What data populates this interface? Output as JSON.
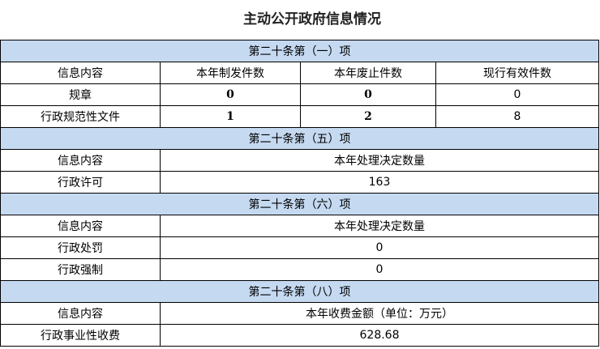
{
  "title": "主动公开政府信息情况",
  "s1": {
    "heading": "第二十条第（一）项",
    "cols": [
      "信息内容",
      "本年制发件数",
      "本年废止件数",
      "现行有效件数"
    ],
    "rows": [
      [
        "规章",
        "0",
        "0",
        "0"
      ],
      [
        "行政规范性文件",
        "1",
        "2",
        "8"
      ]
    ]
  },
  "s5": {
    "heading": "第二十条第（五）项",
    "cols": [
      "信息内容",
      "本年处理决定数量"
    ],
    "rows": [
      [
        "行政许可",
        "163"
      ]
    ]
  },
  "s6": {
    "heading": "第二十条第（六）项",
    "cols": [
      "信息内容",
      "本年处理决定数量"
    ],
    "rows": [
      [
        "行政处罚",
        "0"
      ],
      [
        "行政强制",
        "0"
      ]
    ]
  },
  "s8": {
    "heading": "第二十条第（八）项",
    "cols": [
      "信息内容",
      "本年收费金额（单位：万元）"
    ],
    "rows": [
      [
        "行政事业性收费",
        "628.68"
      ]
    ]
  },
  "colors": {
    "section_bg": "#c5d9f1"
  }
}
